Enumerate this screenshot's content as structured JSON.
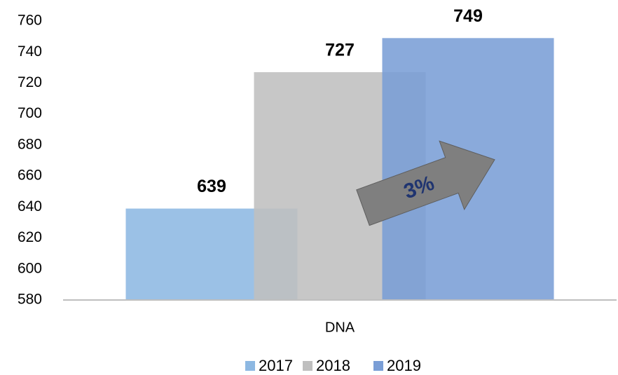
{
  "chart_data": {
    "type": "bar",
    "categories": [
      "DNA"
    ],
    "series": [
      {
        "name": "2017",
        "color": "#8db8e2",
        "values": [
          639
        ]
      },
      {
        "name": "2018",
        "color": "#bfbfbf",
        "values": [
          727
        ]
      },
      {
        "name": "2019",
        "color": "#7a9ed6",
        "values": [
          749
        ]
      }
    ],
    "ylim": [
      580,
      760
    ],
    "yticks": [
      580,
      600,
      620,
      640,
      660,
      680,
      700,
      720,
      740,
      760
    ],
    "grid": false,
    "legend": "bottom",
    "annotation": "3%"
  }
}
